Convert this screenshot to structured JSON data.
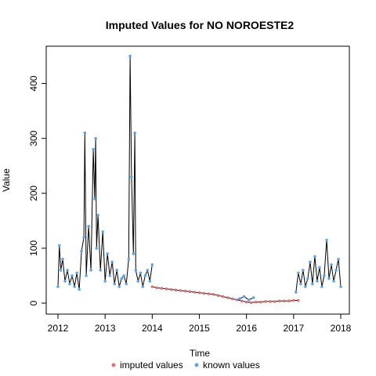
{
  "chart_data": {
    "type": "line",
    "title": "Imputed Values for  NO NOROESTE2",
    "xlabel": "Time",
    "ylabel": "Value",
    "xlim": [
      2012,
      2018
    ],
    "ylim": [
      0,
      455
    ],
    "x_ticks": [
      "2012",
      "2013",
      "2014",
      "2015",
      "2016",
      "2017",
      "2018"
    ],
    "y_ticks": [
      "0",
      "100",
      "200",
      "300",
      "400"
    ],
    "legend": {
      "placement": "bottom",
      "entries": [
        "imputed values",
        "known values"
      ]
    },
    "colors": {
      "imputed": "#E86F6F",
      "known": "#5DA5E8",
      "line": "#000000"
    },
    "series": [
      {
        "name": "known values",
        "segments": [
          {
            "x": [
              2012.0,
              2012.03,
              2012.06,
              2012.1,
              2012.15,
              2012.2,
              2012.25,
              2012.3,
              2012.35,
              2012.4,
              2012.45,
              2012.5,
              2012.55,
              2012.57,
              2012.6,
              2012.65,
              2012.7,
              2012.75,
              2012.78,
              2012.8,
              2012.82,
              2012.85,
              2012.9,
              2012.95,
              2013.0,
              2013.05,
              2013.1,
              2013.15,
              2013.2,
              2013.25,
              2013.3,
              2013.35,
              2013.4,
              2013.45,
              2013.5,
              2013.53,
              2013.56,
              2013.6,
              2013.63,
              2013.65,
              2013.7,
              2013.75,
              2013.8,
              2013.85,
              2013.9,
              2013.95,
              2014.0
            ],
            "y": [
              30,
              105,
              60,
              80,
              40,
              60,
              35,
              50,
              30,
              55,
              25,
              95,
              120,
              310,
              50,
              140,
              60,
              280,
              190,
              300,
              100,
              160,
              60,
              130,
              40,
              90,
              50,
              75,
              35,
              60,
              30,
              45,
              50,
              35,
              80,
              450,
              230,
              90,
              310,
              60,
              40,
              55,
              30,
              50,
              60,
              40,
              70
            ]
          },
          {
            "x": [
              2015.85,
              2015.95,
              2016.05,
              2016.15
            ],
            "y": [
              8,
              12,
              6,
              10
            ]
          },
          {
            "x": [
              2017.05,
              2017.1,
              2017.15,
              2017.2,
              2017.25,
              2017.3,
              2017.35,
              2017.4,
              2017.45,
              2017.5,
              2017.55,
              2017.6,
              2017.65,
              2017.7,
              2017.75,
              2017.8,
              2017.85,
              2017.9,
              2017.95,
              2018.0
            ],
            "y": [
              20,
              55,
              35,
              60,
              30,
              45,
              75,
              35,
              85,
              40,
              65,
              30,
              50,
              115,
              45,
              70,
              40,
              60,
              80,
              30
            ]
          }
        ]
      },
      {
        "name": "imputed values",
        "segments": [
          {
            "x": [
              2014.0,
              2014.1,
              2014.2,
              2014.3,
              2014.4,
              2014.5,
              2014.6,
              2014.7,
              2014.8,
              2014.9,
              2015.0,
              2015.1,
              2015.2,
              2015.3,
              2015.4,
              2015.5,
              2015.6,
              2015.7,
              2015.8,
              2015.9,
              2016.0,
              2016.1,
              2016.2,
              2016.3,
              2016.4,
              2016.5,
              2016.6,
              2016.7,
              2016.8,
              2016.9,
              2017.0,
              2017.1
            ],
            "y": [
              30,
              28,
              27,
              26,
              25,
              24,
              23,
              22,
              21,
              20,
              19,
              18,
              17,
              16,
              14,
              12,
              10,
              8,
              6,
              4,
              2,
              1,
              2,
              2,
              3,
              3,
              3,
              4,
              4,
              4,
              5,
              5
            ]
          }
        ]
      }
    ]
  }
}
